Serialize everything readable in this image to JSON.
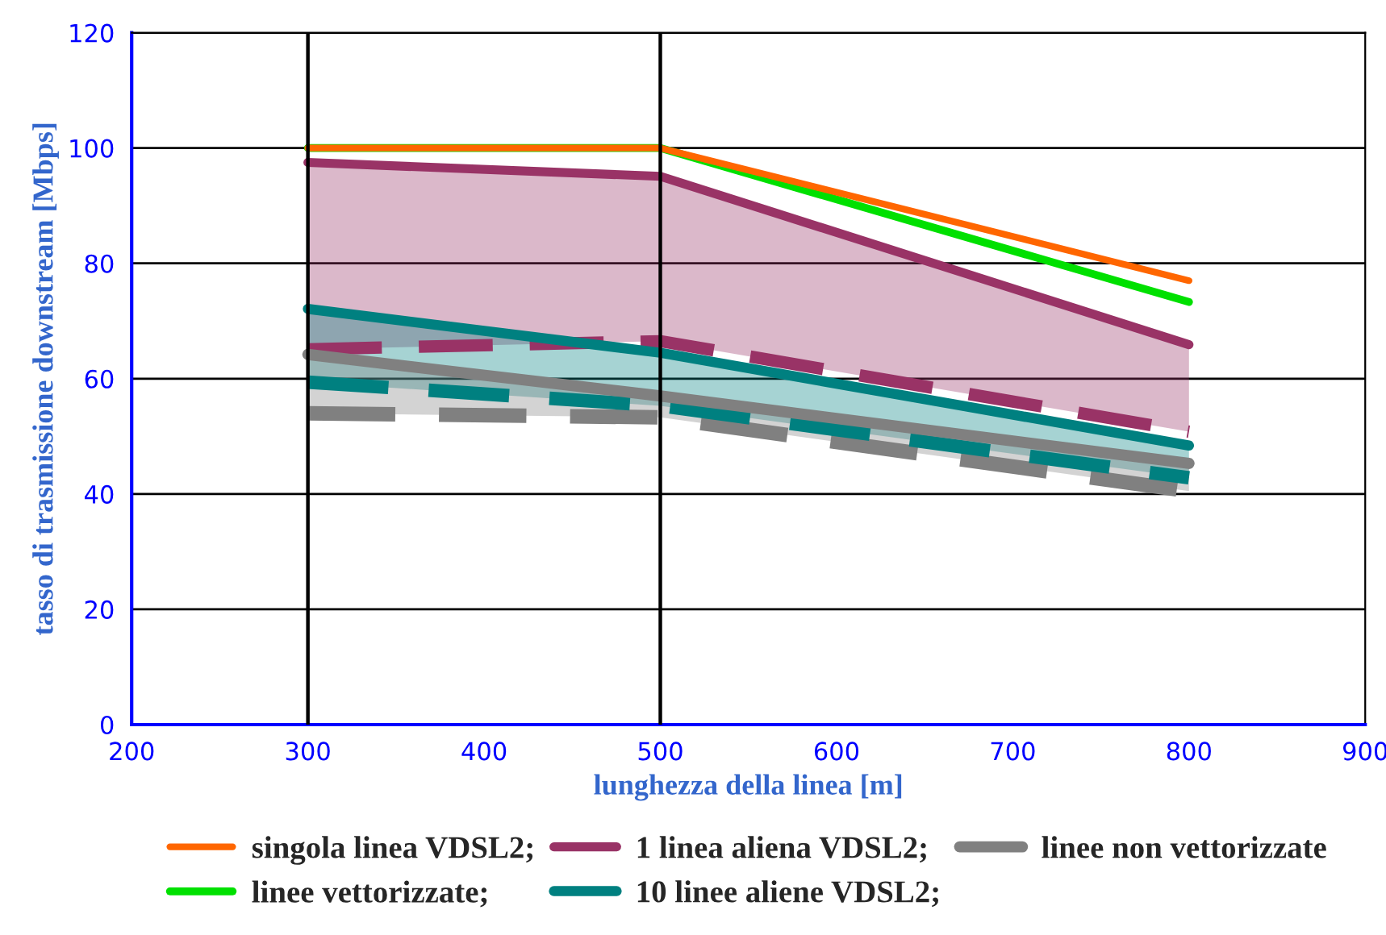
{
  "chart_data": {
    "type": "line",
    "xlabel": "lunghezza della linea [m]",
    "ylabel": "tasso di trasmissione downstream [Mbps]",
    "x": [
      300,
      500,
      800
    ],
    "xlim": [
      200,
      900
    ],
    "xticks": [
      200,
      300,
      400,
      500,
      600,
      700,
      800,
      900
    ],
    "ylim": [
      0,
      120
    ],
    "yticks": [
      0,
      20,
      40,
      60,
      80,
      100,
      120
    ],
    "grid": "y",
    "legend": "bottom",
    "marker": "none",
    "ref_lines": [
      {
        "axis": "x",
        "value": 300,
        "color": "#000000"
      },
      {
        "axis": "x",
        "value": 500,
        "color": "#000000"
      }
    ],
    "series": [
      {
        "name": "singola linea VDSL2;",
        "color": "#ff6600",
        "values": [
          100,
          100,
          77
        ]
      },
      {
        "name": "linee vettorizzate;",
        "color": "#00e000",
        "values": [
          100,
          100,
          73.3
        ]
      },
      {
        "name": "1 linea aliena VDSL2;",
        "color": "#993366",
        "values": [
          97.5,
          95.1,
          65.9
        ],
        "lower": [
          65.1,
          66.5,
          50.8
        ],
        "upper": [
          97.5,
          95.1,
          65.9
        ]
      },
      {
        "name": "10 linee aliene VDSL2;",
        "color": "#008080",
        "values": [
          72.1,
          64.5,
          48.4
        ],
        "lower": [
          59.4,
          55.3,
          42.8
        ],
        "upper": [
          72.1,
          64.5,
          48.4
        ]
      },
      {
        "name": "linee non vettorizzate",
        "color": "#808080",
        "values": [
          64.2,
          57,
          45.3
        ],
        "lower": [
          54,
          53.3,
          40.5
        ],
        "upper": [
          64.2,
          57,
          45.3
        ]
      },
      {
        "color": "#993366",
        "values": [
          65.1,
          66.5,
          50.8
        ],
        "line_style": "dashed"
      },
      {
        "color": "#008080",
        "values": [
          59.4,
          55.3,
          42.8
        ],
        "line_style": "dashed"
      },
      {
        "color": "#808080",
        "values": [
          54,
          53.3,
          40.5
        ],
        "line_style": "dashed"
      }
    ]
  }
}
